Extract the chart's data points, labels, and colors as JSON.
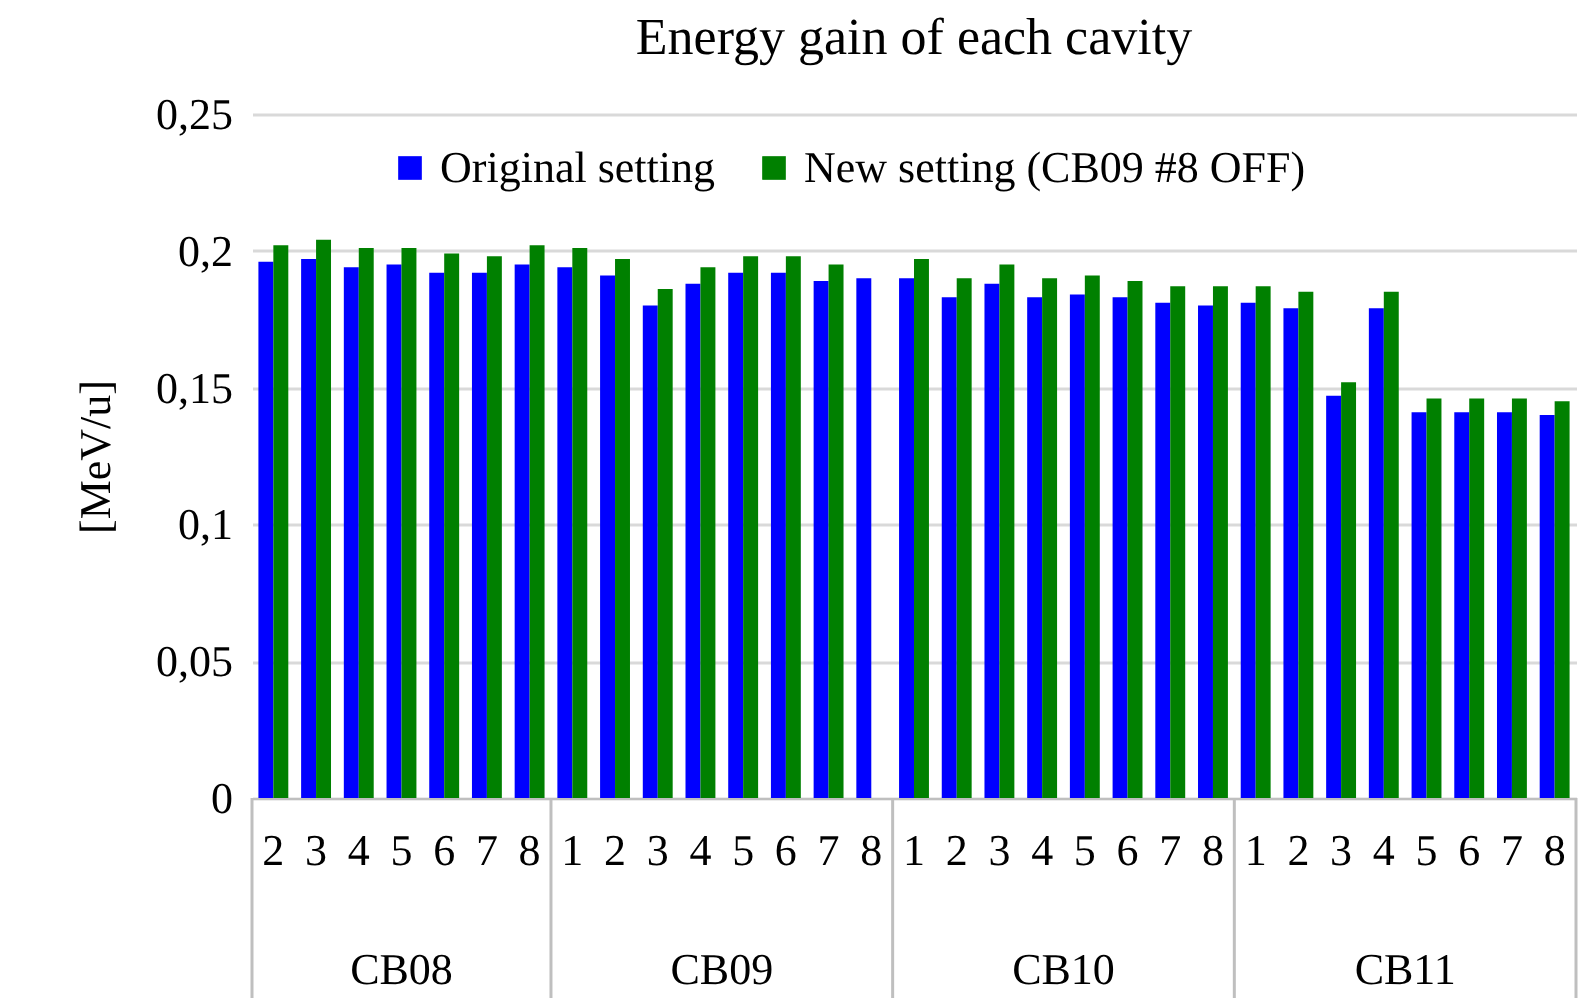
{
  "chart_data": {
    "type": "bar",
    "title": "Energy gain of each cavity",
    "ylabel": "[MeV/u]",
    "categories": [
      "2",
      "3",
      "4",
      "5",
      "6",
      "7",
      "8",
      "1",
      "2",
      "3",
      "4",
      "5",
      "6",
      "7",
      "8",
      "1",
      "2",
      "3",
      "4",
      "5",
      "6",
      "7",
      "8",
      "1",
      "2",
      "3",
      "4",
      "5",
      "6",
      "7",
      "8"
    ],
    "annotations": [
      "CB08",
      "CB09",
      "CB10",
      "CB11"
    ],
    "series": [
      {
        "name": "Original setting",
        "color": "#0000ff",
        "values": [
          0.196,
          0.197,
          0.194,
          0.195,
          0.192,
          0.192,
          0.195,
          0.194,
          0.191,
          0.18,
          0.188,
          0.192,
          0.192,
          0.189,
          0.19,
          0.19,
          0.183,
          0.188,
          0.183,
          0.184,
          0.183,
          0.181,
          0.18,
          0.181,
          0.179,
          0.147,
          0.179,
          0.141,
          0.141,
          0.141,
          0.14
        ]
      },
      {
        "name": "New setting (CB09 #8 OFF)",
        "color": "#008000",
        "values": [
          0.202,
          0.204,
          0.201,
          0.201,
          0.199,
          0.198,
          0.202,
          0.201,
          0.197,
          0.186,
          0.194,
          0.198,
          0.198,
          0.195,
          null,
          0.197,
          0.19,
          0.195,
          0.19,
          0.191,
          0.189,
          0.187,
          0.187,
          0.187,
          0.185,
          0.152,
          0.185,
          0.146,
          0.146,
          0.146,
          0.145
        ]
      }
    ],
    "ylim": [
      0,
      0.25
    ],
    "yticks": [
      0,
      {
        "value": 0.05,
        "label": "0,05"
      },
      {
        "value": 0.1,
        "label": "0,1"
      },
      {
        "value": 0.15,
        "label": "0,15"
      },
      {
        "value": 0.2,
        "label": "0,2"
      },
      {
        "value": 0.25,
        "label": "0,25"
      }
    ],
    "grid": "y",
    "legend": "top"
  }
}
